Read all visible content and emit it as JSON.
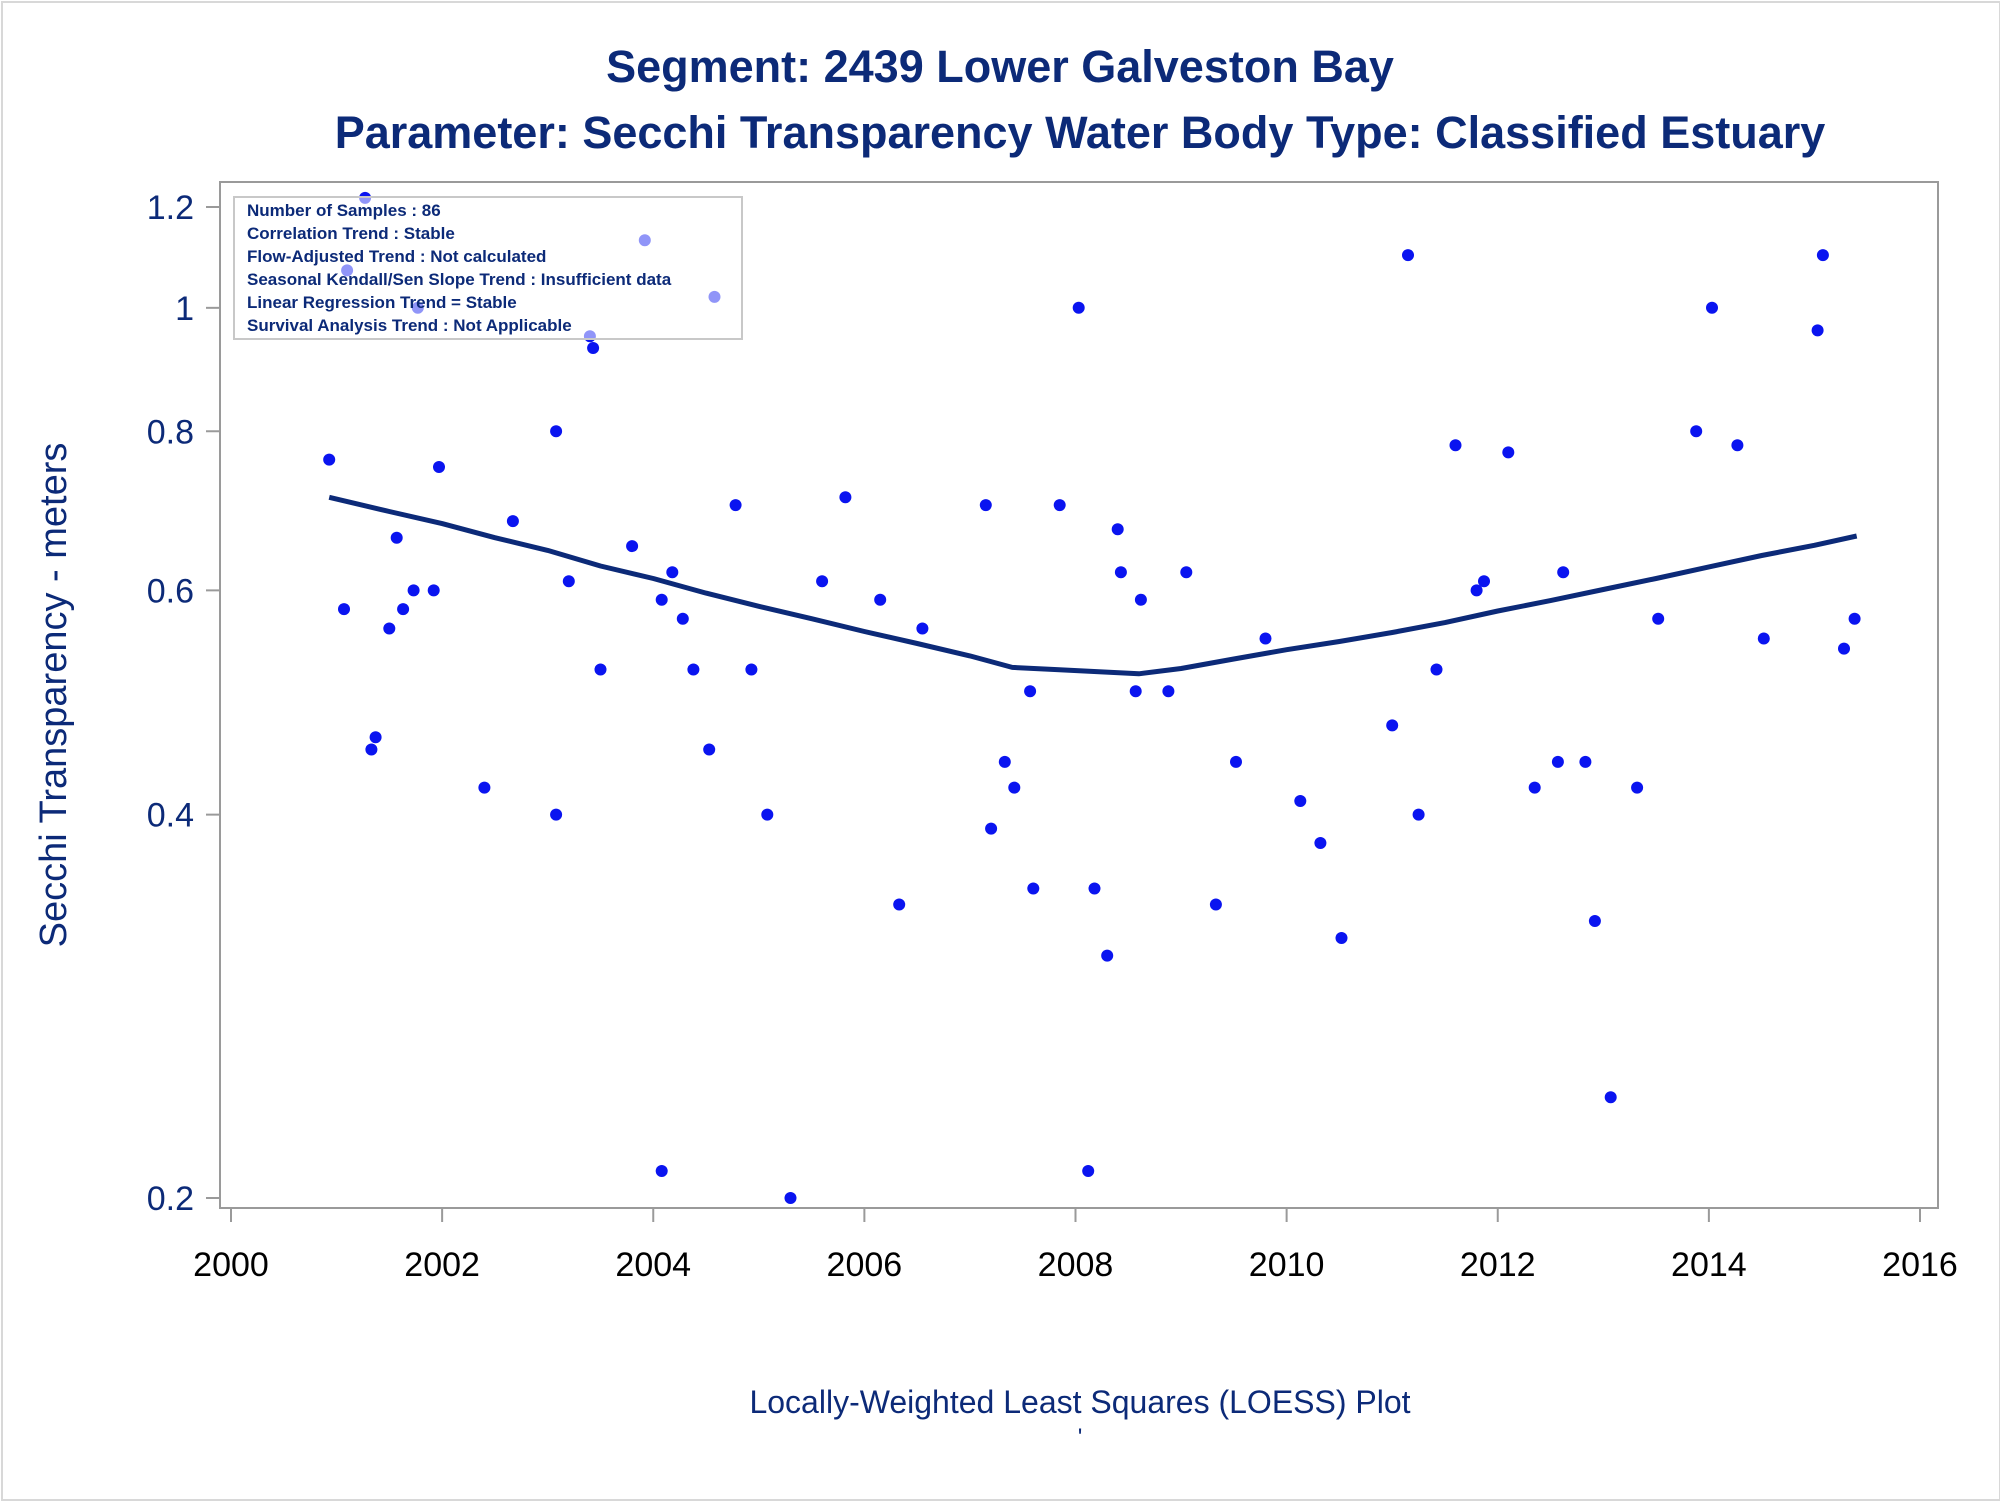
{
  "chart_data": {
    "type": "scatter",
    "title": "Segment: 2439  Lower Galveston Bay",
    "subtitle": "Parameter: Secchi Transparency   Water Body Type: Classified Estuary",
    "xlabel": "Locally-Weighted Least Squares (LOESS) Plot",
    "ylabel": "Secchi Transparency - meters",
    "footnote": "'",
    "xlim": [
      2000,
      2016
    ],
    "ylim": [
      0.2,
      1.2
    ],
    "y_scale": "log",
    "x_ticks": [
      "2000",
      "2002",
      "2004",
      "2006",
      "2008",
      "2010",
      "2012",
      "2014",
      "2016"
    ],
    "y_ticks": [
      "0.2",
      "0.4",
      "0.6",
      "0.8",
      "1",
      "1.2"
    ],
    "grid": false,
    "point_color": "#0a14f0",
    "line_color": "#0c2a78",
    "text_color": "#0c2a78",
    "inset_lines": [
      "Number of Samples : 86",
      "Correlation Trend : Stable",
      "Flow-Adjusted Trend : Not calculated",
      "Seasonal Kendall/Sen Slope Trend : Insufficient data",
      "Linear Regression Trend = Stable",
      "Survival Analysis Trend : Not Applicable"
    ],
    "series": [
      {
        "type": "scatter",
        "points": [
          [
            2000.93,
            0.76
          ],
          [
            2001.07,
            0.58
          ],
          [
            2001.1,
            1.07
          ],
          [
            2001.27,
            1.22
          ],
          [
            2001.33,
            0.45
          ],
          [
            2001.37,
            0.46
          ],
          [
            2001.5,
            0.56
          ],
          [
            2001.57,
            0.66
          ],
          [
            2001.63,
            0.58
          ],
          [
            2001.73,
            0.6
          ],
          [
            2001.77,
            1.0
          ],
          [
            2001.92,
            0.6
          ],
          [
            2001.97,
            0.75
          ],
          [
            2002.4,
            0.42
          ],
          [
            2002.67,
            0.68
          ],
          [
            2003.08,
            0.4
          ],
          [
            2003.08,
            0.8
          ],
          [
            2003.2,
            0.61
          ],
          [
            2003.4,
            0.95
          ],
          [
            2003.43,
            0.93
          ],
          [
            2003.5,
            0.52
          ],
          [
            2003.8,
            0.65
          ],
          [
            2003.92,
            1.13
          ],
          [
            2004.08,
            0.21
          ],
          [
            2004.08,
            0.59
          ],
          [
            2004.18,
            0.62
          ],
          [
            2004.28,
            0.57
          ],
          [
            2004.38,
            0.52
          ],
          [
            2004.53,
            0.45
          ],
          [
            2004.58,
            1.02
          ],
          [
            2004.78,
            0.7
          ],
          [
            2004.93,
            0.52
          ],
          [
            2005.08,
            0.4
          ],
          [
            2005.3,
            0.2
          ],
          [
            2005.6,
            0.61
          ],
          [
            2005.82,
            0.71
          ],
          [
            2006.15,
            0.59
          ],
          [
            2006.33,
            0.34
          ],
          [
            2006.55,
            0.56
          ],
          [
            2007.15,
            0.7
          ],
          [
            2007.2,
            0.39
          ],
          [
            2007.33,
            0.44
          ],
          [
            2007.42,
            0.42
          ],
          [
            2007.57,
            0.5
          ],
          [
            2007.6,
            0.35
          ],
          [
            2007.85,
            0.7
          ],
          [
            2008.03,
            1.0
          ],
          [
            2008.12,
            0.21
          ],
          [
            2008.18,
            0.35
          ],
          [
            2008.3,
            0.31
          ],
          [
            2008.4,
            0.67
          ],
          [
            2008.43,
            0.62
          ],
          [
            2008.57,
            0.5
          ],
          [
            2008.62,
            0.59
          ],
          [
            2008.88,
            0.5
          ],
          [
            2009.05,
            0.62
          ],
          [
            2009.33,
            0.34
          ],
          [
            2009.52,
            0.44
          ],
          [
            2009.8,
            0.55
          ],
          [
            2010.13,
            0.41
          ],
          [
            2010.32,
            0.38
          ],
          [
            2010.52,
            0.32
          ],
          [
            2011.0,
            0.47
          ],
          [
            2011.15,
            1.1
          ],
          [
            2011.25,
            0.4
          ],
          [
            2011.42,
            0.52
          ],
          [
            2011.6,
            0.78
          ],
          [
            2011.8,
            0.6
          ],
          [
            2011.87,
            0.61
          ],
          [
            2012.1,
            0.77
          ],
          [
            2012.35,
            0.42
          ],
          [
            2012.57,
            0.44
          ],
          [
            2012.62,
            0.62
          ],
          [
            2012.83,
            0.44
          ],
          [
            2012.92,
            0.33
          ],
          [
            2013.07,
            0.24
          ],
          [
            2013.32,
            0.42
          ],
          [
            2013.52,
            0.57
          ],
          [
            2013.88,
            0.8
          ],
          [
            2014.03,
            1.0
          ],
          [
            2014.27,
            0.78
          ],
          [
            2014.52,
            0.55
          ],
          [
            2015.03,
            0.96
          ],
          [
            2015.08,
            1.1
          ],
          [
            2015.28,
            0.54
          ],
          [
            2015.38,
            0.57
          ]
        ]
      },
      {
        "type": "line",
        "points": [
          [
            2000.93,
            0.71
          ],
          [
            2001.5,
            0.692
          ],
          [
            2002.0,
            0.677
          ],
          [
            2002.5,
            0.66
          ],
          [
            2003.0,
            0.645
          ],
          [
            2003.5,
            0.627
          ],
          [
            2004.0,
            0.613
          ],
          [
            2004.5,
            0.597
          ],
          [
            2005.0,
            0.583
          ],
          [
            2005.5,
            0.57
          ],
          [
            2006.0,
            0.557
          ],
          [
            2006.5,
            0.545
          ],
          [
            2007.0,
            0.533
          ],
          [
            2007.4,
            0.522
          ],
          [
            2007.8,
            0.52
          ],
          [
            2008.2,
            0.518
          ],
          [
            2008.6,
            0.516
          ],
          [
            2009.0,
            0.521
          ],
          [
            2009.5,
            0.53
          ],
          [
            2010.0,
            0.539
          ],
          [
            2010.5,
            0.547
          ],
          [
            2011.0,
            0.556
          ],
          [
            2011.5,
            0.566
          ],
          [
            2012.0,
            0.578
          ],
          [
            2012.5,
            0.589
          ],
          [
            2013.0,
            0.601
          ],
          [
            2013.5,
            0.613
          ],
          [
            2014.0,
            0.626
          ],
          [
            2014.5,
            0.639
          ],
          [
            2015.0,
            0.651
          ],
          [
            2015.4,
            0.662
          ]
        ]
      }
    ]
  }
}
